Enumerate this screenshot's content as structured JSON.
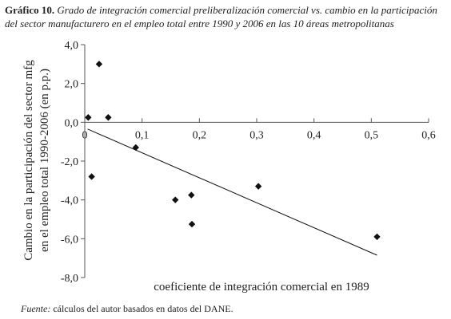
{
  "caption": {
    "label": "Gráfico 10.",
    "text": "Grado de integración comercial preliberalización comercial vs. cambio en la participación del sector manufacturero en el empleo total entre 1990 y 2006 en las 10 áreas metropolitanas"
  },
  "source": {
    "label": "Fuente:",
    "text": "cálculos del autor basados en datos del DANE."
  },
  "chart_data": {
    "type": "scatter",
    "xlabel": "coeficiente de integración comercial en 1989",
    "ylabel": "Cambio en la participación del sector mfg en el empleo total 1990-2006 (en p.p.)",
    "ylabel_lines": [
      "Cambio en la participación del sector mfg",
      "en el empleo total 1990-2006 (en p.p.)"
    ],
    "xlim": [
      0,
      0.6
    ],
    "ylim": [
      -8,
      4
    ],
    "xticks": [
      0,
      0.1,
      0.2,
      0.3,
      0.4,
      0.5,
      0.6
    ],
    "xtick_labels": [
      "0",
      "0,1",
      "0,2",
      "0,3",
      "0,4",
      "0,5",
      "0,6"
    ],
    "yticks": [
      4,
      2,
      0,
      -2,
      -4,
      -6,
      -8
    ],
    "ytick_labels": [
      "4,0",
      "2,0",
      "0,0",
      "-2,0",
      "-4,0",
      "-6,0",
      "-8,0"
    ],
    "grid": false,
    "marker": "diamond",
    "marker_color": "#111111",
    "trendline": {
      "x": [
        0.005,
        0.51
      ],
      "y": [
        -0.35,
        -6.85
      ]
    },
    "points": [
      {
        "x": 0.006,
        "y": 0.25
      },
      {
        "x": 0.012,
        "y": -2.8
      },
      {
        "x": 0.025,
        "y": 3.0
      },
      {
        "x": 0.041,
        "y": 0.25
      },
      {
        "x": 0.089,
        "y": -1.3
      },
      {
        "x": 0.158,
        "y": -4.0
      },
      {
        "x": 0.186,
        "y": -3.75
      },
      {
        "x": 0.187,
        "y": -5.25
      },
      {
        "x": 0.303,
        "y": -3.3
      },
      {
        "x": 0.51,
        "y": -5.9
      }
    ]
  }
}
